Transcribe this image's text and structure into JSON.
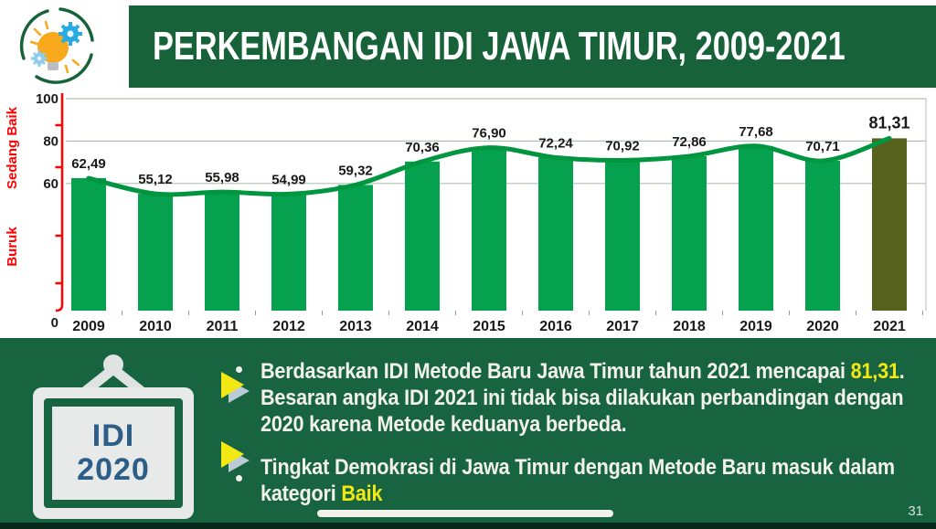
{
  "header": {
    "title": "PERKEMBANGAN IDI JAWA TIMUR, 2009-2021"
  },
  "theme": {
    "header_green": "#176239",
    "panel_green": "#186440",
    "panel_edge": "#05281A",
    "accent_yellow": "#F2E814",
    "text_white": "#F2F1EA",
    "sign_blue": "#2C5E88",
    "sign_light": "#E7EAE9",
    "arrow_shadow": "#B9CBD4"
  },
  "chart_data": {
    "type": "bar",
    "title": "",
    "categories": [
      "2009",
      "2010",
      "2011",
      "2012",
      "2013",
      "2014",
      "2015",
      "2016",
      "2017",
      "2018",
      "2019",
      "2020",
      "2021"
    ],
    "values": [
      62.49,
      55.12,
      55.98,
      54.99,
      59.32,
      70.36,
      76.9,
      72.24,
      70.92,
      72.86,
      77.68,
      70.71,
      81.31
    ],
    "value_labels": [
      "62,49",
      "55,12",
      "55,98",
      "54,99",
      "59,32",
      "70,36",
      "76,90",
      "72,24",
      "70,92",
      "72,86",
      "77,68",
      "70,71",
      "81,31"
    ],
    "ylim": [
      0,
      100
    ],
    "yticks": [
      100,
      80,
      60,
      0
    ],
    "gridlines": [
      100,
      80,
      60
    ],
    "y_band_labels": [
      "Sedang Baik",
      "Buruk"
    ],
    "overlay_line": "smooth trend line through bar tops",
    "last_bar_emphasized": true,
    "colors": {
      "bar": "#05A14E",
      "last_bar": "#56611E",
      "line": "#009640",
      "axis": "#FF0000",
      "grid": "#AEC3B2",
      "label": "#1A1A1A"
    }
  },
  "bottom": {
    "sign": {
      "line1": "IDI",
      "line2": "2020"
    },
    "bullets": [
      {
        "lines": [
          [
            {
              "text": "Berdasarkan IDI Metode Baru Jawa Timur tahun 2021 mencapai ",
              "color": "white"
            },
            {
              "text": "81,31",
              "color": "yellow"
            },
            {
              "text": ".",
              "color": "white"
            }
          ],
          [
            {
              "text": "Besaran angka IDI 2021 ini tidak bisa dilakukan perbandingan dengan",
              "color": "white"
            }
          ],
          [
            {
              "text": "2020 karena Metode keduanya berbeda.",
              "color": "white"
            }
          ]
        ]
      },
      {
        "lines": [
          [
            {
              "text": "Tingkat Demokrasi di Jawa Timur dengan Metode Baru masuk dalam",
              "color": "white"
            }
          ],
          [
            {
              "text": "kategori ",
              "color": "white"
            },
            {
              "text": "Baik",
              "color": "yellow"
            }
          ]
        ]
      }
    ],
    "page_number": "31"
  }
}
